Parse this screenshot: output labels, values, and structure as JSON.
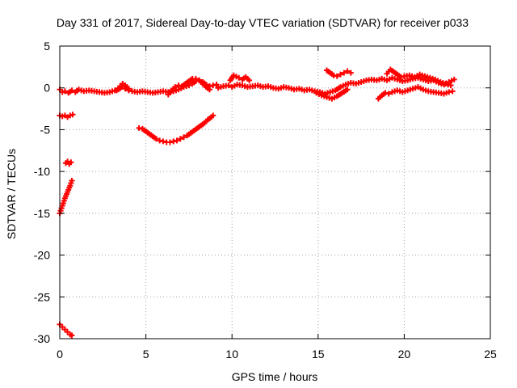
{
  "chart_data": {
    "type": "scatter",
    "title": "Day 331 of 2017, Sidereal Day-to-day VTEC variation (SDTVAR) for receiver p033",
    "xlabel": "GPS time / hours",
    "ylabel": "SDTVAR / TECUs",
    "xlim": [
      0,
      25
    ],
    "ylim": [
      -30,
      5
    ],
    "xticks": [
      0,
      5,
      10,
      15,
      20,
      25
    ],
    "yticks": [
      5,
      0,
      -5,
      -10,
      -15,
      -20,
      -25,
      -30
    ],
    "grid": true,
    "marker": "+",
    "series_color": "#ff0000",
    "series": [
      {
        "name": "SDTVAR",
        "segments": [
          {
            "name": "main-band-0-5h",
            "points": [
              [
                0.0,
                -0.2
              ],
              [
                0.15,
                -0.5
              ],
              [
                0.3,
                -0.4
              ],
              [
                0.5,
                -0.6
              ],
              [
                0.7,
                -0.3
              ],
              [
                0.9,
                -0.5
              ],
              [
                1.1,
                -0.2
              ],
              [
                1.4,
                -0.4
              ],
              [
                1.7,
                -0.3
              ],
              [
                2.0,
                -0.4
              ],
              [
                2.3,
                -0.5
              ],
              [
                2.6,
                -0.6
              ],
              [
                2.9,
                -0.5
              ],
              [
                3.2,
                -0.3
              ],
              [
                3.4,
                -0.2
              ],
              [
                3.6,
                0.1
              ],
              [
                3.8,
                -0.1
              ],
              [
                4.0,
                -0.3
              ],
              [
                4.2,
                -0.4
              ],
              [
                4.5,
                -0.5
              ],
              [
                4.8,
                -0.4
              ],
              [
                5.1,
                -0.5
              ],
              [
                5.4,
                -0.6
              ],
              [
                5.7,
                -0.5
              ],
              [
                6.0,
                -0.4
              ],
              [
                6.3,
                -0.5
              ],
              [
                6.6,
                -0.4
              ],
              [
                6.9,
                -0.2
              ],
              [
                7.2,
                0.1
              ],
              [
                7.5,
                0.3
              ],
              [
                7.7,
                0.5
              ],
              [
                7.9,
                0.8
              ],
              [
                8.1,
                0.9
              ],
              [
                8.3,
                0.7
              ],
              [
                8.5,
                0.4
              ],
              [
                8.7,
                0.2
              ],
              [
                8.9,
                0.3
              ],
              [
                9.1,
                0.4
              ]
            ]
          },
          {
            "name": "bump-3.5h",
            "points": [
              [
                3.3,
                -0.3
              ],
              [
                3.5,
                0.2
              ],
              [
                3.65,
                0.5
              ],
              [
                3.8,
                0.3
              ],
              [
                4.0,
                -0.1
              ]
            ]
          },
          {
            "name": "wave-6-9h",
            "points": [
              [
                6.3,
                -0.8
              ],
              [
                6.5,
                -0.3
              ],
              [
                6.7,
                0.1
              ],
              [
                6.9,
                0.3
              ],
              [
                7.1,
                0.2
              ],
              [
                7.3,
                0.5
              ],
              [
                7.5,
                0.8
              ],
              [
                7.7,
                1.1
              ],
              [
                7.9,
                1.1
              ],
              [
                8.1,
                0.9
              ],
              [
                8.3,
                0.5
              ],
              [
                8.5,
                0.1
              ],
              [
                8.7,
                -0.2
              ]
            ]
          },
          {
            "name": "main-band-9-23h",
            "points": [
              [
                9.2,
                0.0
              ],
              [
                9.5,
                0.2
              ],
              [
                9.8,
                0.3
              ],
              [
                10.0,
                0.1
              ],
              [
                10.3,
                0.4
              ],
              [
                10.6,
                0.3
              ],
              [
                10.9,
                0.1
              ],
              [
                11.2,
                0.2
              ],
              [
                11.5,
                0.3
              ],
              [
                11.8,
                0.1
              ],
              [
                12.1,
                0.2
              ],
              [
                12.4,
                0.0
              ],
              [
                12.7,
                -0.1
              ],
              [
                13.0,
                0.1
              ],
              [
                13.3,
                0.0
              ],
              [
                13.6,
                -0.2
              ],
              [
                13.9,
                -0.1
              ],
              [
                14.2,
                -0.3
              ],
              [
                14.5,
                -0.2
              ],
              [
                14.8,
                -0.4
              ],
              [
                15.1,
                -0.5
              ],
              [
                15.4,
                -0.7
              ],
              [
                15.7,
                -0.5
              ],
              [
                16.0,
                -0.3
              ],
              [
                16.3,
                0.1
              ],
              [
                16.6,
                0.4
              ],
              [
                16.9,
                0.6
              ],
              [
                17.2,
                0.5
              ],
              [
                17.5,
                0.7
              ],
              [
                17.8,
                0.9
              ],
              [
                18.1,
                1.0
              ],
              [
                18.4,
                0.9
              ],
              [
                18.7,
                1.1
              ],
              [
                19.0,
                0.9
              ],
              [
                19.3,
                1.2
              ],
              [
                19.6,
                1.0
              ],
              [
                19.9,
                0.8
              ],
              [
                20.2,
                0.9
              ],
              [
                20.5,
                1.1
              ],
              [
                20.8,
                1.2
              ],
              [
                21.1,
                1.0
              ],
              [
                21.4,
                0.8
              ],
              [
                21.7,
                0.9
              ],
              [
                22.0,
                0.6
              ],
              [
                22.3,
                0.4
              ],
              [
                22.6,
                0.7
              ],
              [
                22.9,
                1.0
              ]
            ]
          },
          {
            "name": "spike-10.1h",
            "points": [
              [
                9.9,
                0.9
              ],
              [
                10.1,
                1.5
              ],
              [
                10.4,
                1.2
              ],
              [
                10.6,
                1.0
              ],
              [
                10.8,
                1.3
              ],
              [
                11.0,
                0.9
              ]
            ]
          },
          {
            "name": "lower-15-17h",
            "points": [
              [
                14.9,
                -0.6
              ],
              [
                15.2,
                -0.9
              ],
              [
                15.5,
                -1.1
              ],
              [
                15.8,
                -1.3
              ],
              [
                16.1,
                -1.0
              ],
              [
                16.4,
                -0.6
              ],
              [
                16.7,
                -0.2
              ]
            ]
          },
          {
            "name": "upper-15.5-17h",
            "points": [
              [
                15.5,
                2.1
              ],
              [
                15.7,
                1.8
              ],
              [
                15.9,
                1.5
              ],
              [
                16.1,
                1.4
              ],
              [
                16.3,
                1.6
              ],
              [
                16.5,
                1.8
              ],
              [
                16.7,
                2.0
              ],
              [
                16.9,
                1.8
              ]
            ]
          },
          {
            "name": "high-19-22h",
            "points": [
              [
                19.0,
                1.7
              ],
              [
                19.2,
                2.2
              ],
              [
                19.4,
                1.9
              ],
              [
                19.6,
                1.6
              ],
              [
                19.8,
                1.3
              ],
              [
                20.0,
                1.4
              ],
              [
                20.3,
                1.5
              ],
              [
                20.6,
                1.3
              ],
              [
                20.9,
                1.6
              ],
              [
                21.2,
                1.4
              ],
              [
                21.5,
                1.2
              ],
              [
                21.8,
                1.0
              ],
              [
                22.1,
                0.7
              ],
              [
                22.4,
                0.5
              ],
              [
                22.7,
                0.3
              ]
            ]
          },
          {
            "name": "dip-18.5-22.5h",
            "points": [
              [
                18.5,
                -1.3
              ],
              [
                18.7,
                -0.9
              ],
              [
                18.9,
                -0.6
              ],
              [
                19.1,
                -0.7
              ],
              [
                19.3,
                -0.5
              ],
              [
                19.6,
                -0.3
              ],
              [
                19.9,
                -0.5
              ],
              [
                20.2,
                -0.3
              ],
              [
                20.5,
                -0.1
              ],
              [
                20.8,
                0.1
              ],
              [
                21.1,
                -0.2
              ],
              [
                21.4,
                -0.4
              ],
              [
                21.7,
                -0.5
              ],
              [
                22.0,
                -0.6
              ],
              [
                22.3,
                -0.7
              ],
              [
                22.6,
                -0.5
              ],
              [
                22.8,
                -0.4
              ]
            ]
          },
          {
            "name": "cluster-0.4h-minus3",
            "points": [
              [
                0.0,
                -3.3
              ],
              [
                0.15,
                -3.4
              ],
              [
                0.3,
                -3.3
              ],
              [
                0.45,
                -3.5
              ],
              [
                0.6,
                -3.3
              ],
              [
                0.75,
                -3.2
              ]
            ]
          },
          {
            "name": "cluster-0.5h-minus9",
            "points": [
              [
                0.35,
                -9.0
              ],
              [
                0.45,
                -8.8
              ],
              [
                0.55,
                -9.1
              ],
              [
                0.65,
                -8.9
              ]
            ]
          },
          {
            "name": "rising-line-0-0.7h",
            "points": [
              [
                0.0,
                -15.0
              ],
              [
                0.1,
                -14.4
              ],
              [
                0.2,
                -13.8
              ],
              [
                0.3,
                -13.2
              ],
              [
                0.4,
                -12.7
              ],
              [
                0.5,
                -12.2
              ],
              [
                0.6,
                -11.7
              ],
              [
                0.7,
                -11.1
              ]
            ]
          },
          {
            "name": "falling-line-0-0.7h",
            "points": [
              [
                0.0,
                -28.3
              ],
              [
                0.15,
                -28.6
              ],
              [
                0.3,
                -28.9
              ],
              [
                0.45,
                -29.2
              ],
              [
                0.6,
                -29.5
              ],
              [
                0.7,
                -29.6
              ]
            ]
          },
          {
            "name": "arc-4.6-8.9h",
            "points": [
              [
                4.6,
                -4.8
              ],
              [
                4.8,
                -4.9
              ],
              [
                5.0,
                -5.2
              ],
              [
                5.2,
                -5.5
              ],
              [
                5.4,
                -5.8
              ],
              [
                5.6,
                -6.1
              ],
              [
                5.8,
                -6.3
              ],
              [
                6.0,
                -6.4
              ],
              [
                6.2,
                -6.5
              ],
              [
                6.4,
                -6.5
              ],
              [
                6.6,
                -6.4
              ],
              [
                6.8,
                -6.3
              ],
              [
                7.0,
                -6.1
              ],
              [
                7.2,
                -5.9
              ],
              [
                7.4,
                -5.7
              ],
              [
                7.6,
                -5.4
              ],
              [
                7.8,
                -5.1
              ],
              [
                8.0,
                -4.8
              ],
              [
                8.2,
                -4.5
              ],
              [
                8.4,
                -4.2
              ],
              [
                8.6,
                -3.8
              ],
              [
                8.8,
                -3.5
              ],
              [
                8.9,
                -3.3
              ]
            ]
          }
        ]
      }
    ]
  }
}
